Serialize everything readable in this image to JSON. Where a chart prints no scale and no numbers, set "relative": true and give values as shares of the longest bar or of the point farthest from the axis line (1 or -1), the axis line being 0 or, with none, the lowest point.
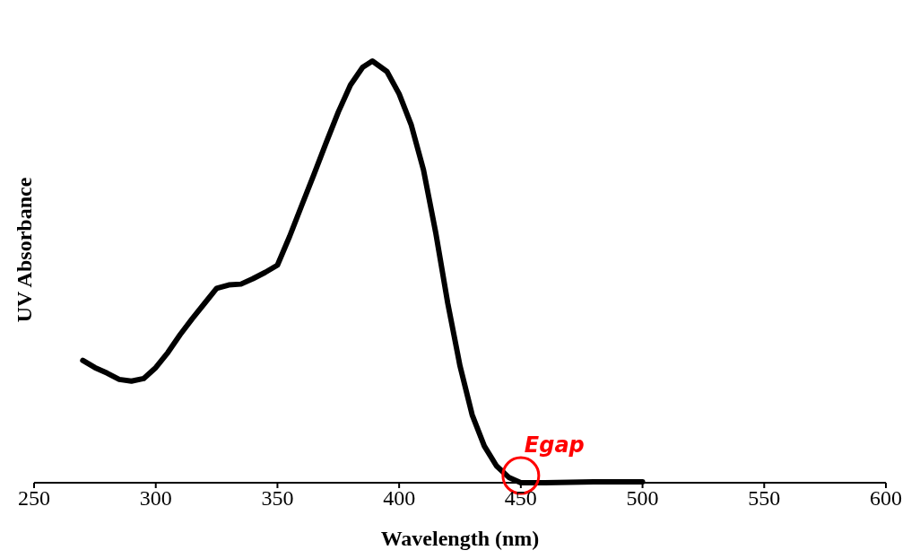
{
  "chart_data": {
    "type": "line",
    "xlabel": "Wavelength (nm)",
    "ylabel": "UV Absorbance",
    "relative": true,
    "xlim": [
      250,
      600
    ],
    "xticks": [
      250,
      300,
      350,
      400,
      450,
      500,
      550,
      600
    ],
    "grid": false,
    "legend": false,
    "marker": "none",
    "line_style": "solid",
    "series": [
      {
        "color": "#000000",
        "x": [
          270,
          275,
          280,
          285,
          290,
          295,
          300,
          305,
          310,
          315,
          320,
          325,
          330,
          335,
          340,
          345,
          350,
          355,
          360,
          365,
          370,
          375,
          380,
          385,
          389,
          395,
          400,
          405,
          410,
          415,
          420,
          425,
          430,
          435,
          440,
          445,
          450,
          460,
          480,
          500
        ],
        "values": [
          0.29,
          0.273,
          0.26,
          0.245,
          0.241,
          0.247,
          0.273,
          0.309,
          0.351,
          0.389,
          0.425,
          0.461,
          0.469,
          0.471,
          0.484,
          0.499,
          0.516,
          0.584,
          0.658,
          0.731,
          0.806,
          0.879,
          0.943,
          0.985,
          1,
          0.975,
          0.922,
          0.848,
          0.742,
          0.594,
          0.425,
          0.277,
          0.161,
          0.087,
          0.04,
          0.013,
          0,
          0,
          0.002,
          0.002
        ]
      }
    ],
    "annotations": [
      {
        "text": "Egap",
        "x": 450,
        "y": 0
      }
    ]
  }
}
